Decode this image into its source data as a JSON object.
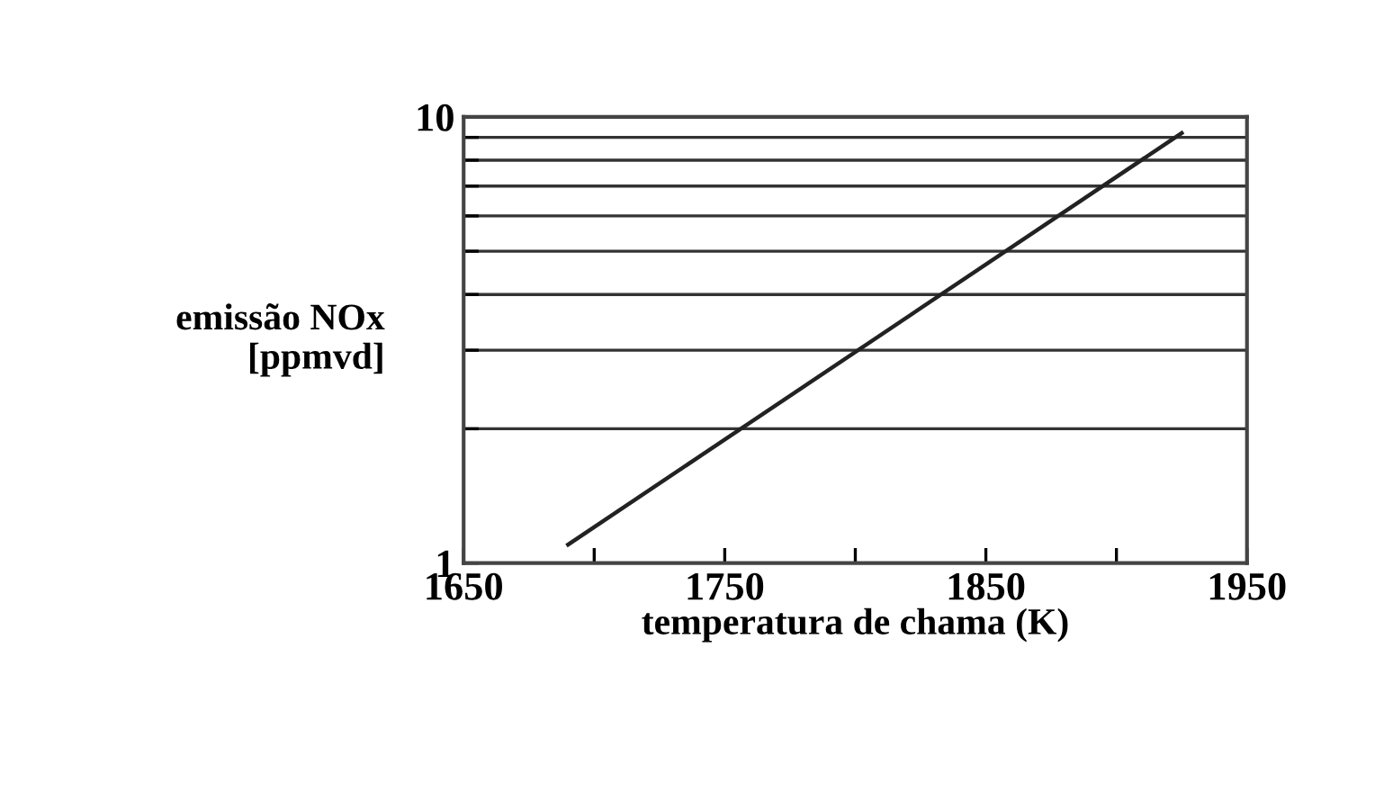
{
  "chart_data": {
    "type": "line",
    "xlabel": "temperatura de chama (K)",
    "ylabel": "emissão NOx\n[ppmvd]",
    "x": [
      1690,
      1925
    ],
    "series": [
      {
        "color": "#222222",
        "values": [
          1.1,
          9.2
        ]
      }
    ],
    "log": "y",
    "xlim": [
      1650,
      1950
    ],
    "ylim": [
      1,
      10
    ],
    "xticks": [
      1650,
      {
        "value": 1700,
        "label": null
      },
      1750,
      {
        "value": 1800,
        "label": null
      },
      1850,
      {
        "value": 1900,
        "label": null
      },
      1950
    ],
    "yticks": [
      1,
      {
        "value": 2,
        "label": null
      },
      {
        "value": 3,
        "label": null
      },
      {
        "value": 4,
        "label": null
      },
      {
        "value": 5,
        "label": null
      },
      {
        "value": 6,
        "label": null
      },
      {
        "value": 7,
        "label": null
      },
      {
        "value": 8,
        "label": null
      },
      {
        "value": 9,
        "label": null
      },
      10
    ],
    "grid": "y",
    "legend": false,
    "marker": "none",
    "line_style": "solid"
  }
}
